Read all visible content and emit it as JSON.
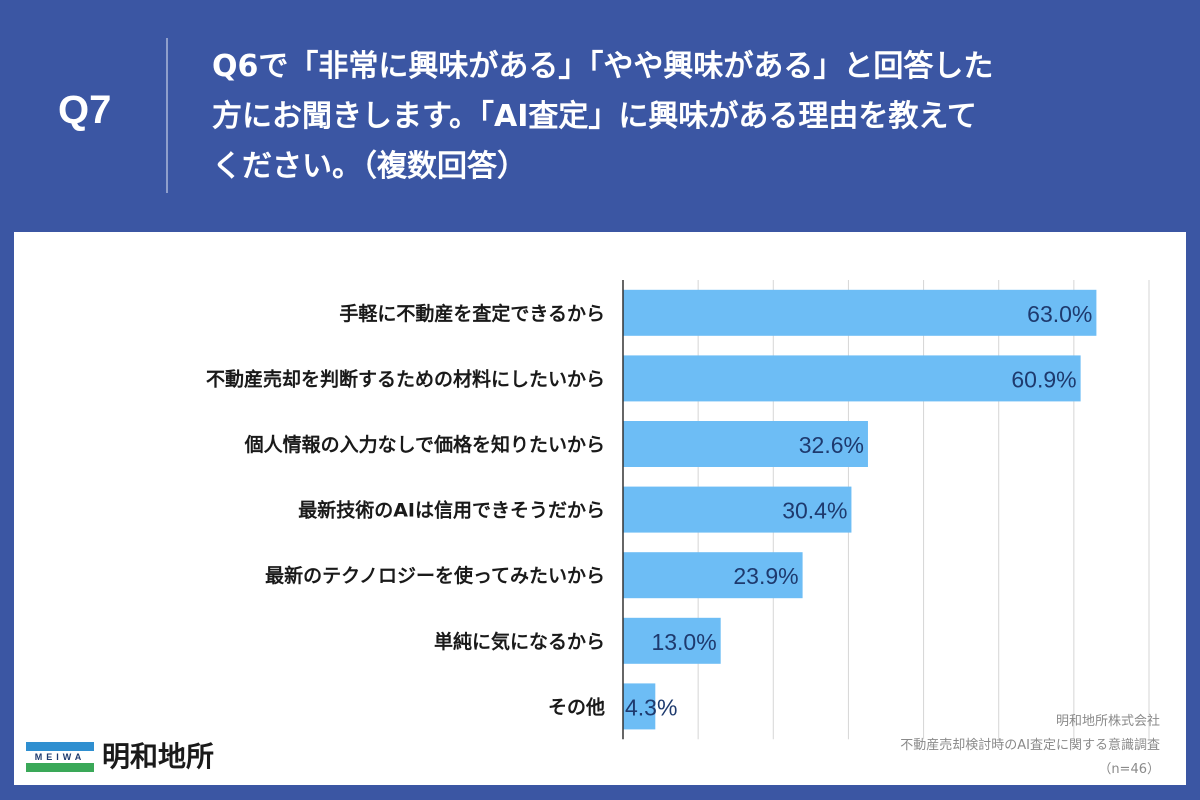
{
  "question": {
    "number": "Q7",
    "lines": [
      "Q6で「非常に興味がある」「やや興味がある」と回答した",
      "方にお聞きします。「AI査定」に興味がある理由を教えて",
      "ください。（複数回答）"
    ]
  },
  "chart_data": {
    "type": "bar",
    "orientation": "horizontal",
    "categories": [
      "手軽に不動産を査定できるから",
      "不動産売却を判断するための材料にしたいから",
      "個人情報の入力なしで価格を知りたいから",
      "最新技術のAIは信用できそうだから",
      "最新のテクノロジーを使ってみたいから",
      "単純に気になるから",
      "その他"
    ],
    "values": [
      63.0,
      60.9,
      32.6,
      30.4,
      23.9,
      13.0,
      4.3
    ],
    "value_labels": [
      "63.0%",
      "60.9%",
      "32.6%",
      "30.4%",
      "23.9%",
      "13.0%",
      "4.3%"
    ],
    "xlim": [
      0,
      70
    ],
    "grid": true,
    "bar_color": "#6dbdf5",
    "label_color": "#1e3a6e"
  },
  "credit": {
    "company": "明和地所株式会社",
    "survey": "不動産売却検討時のAI査定に関する意識調査",
    "sample": "（n=46）"
  },
  "logo": {
    "mark_text": "MEIWA",
    "name": "明和地所"
  },
  "colors": {
    "background": "#3b56a3",
    "panel": "#ffffff"
  }
}
